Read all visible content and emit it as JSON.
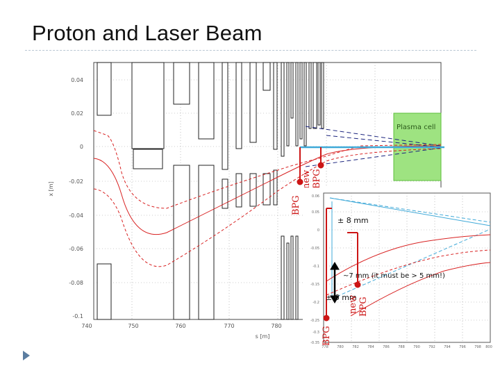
{
  "slide": {
    "title": "Proton and Laser Beam"
  },
  "main_plot": {
    "ylabel": "x [m]",
    "xlabel": "s [m]",
    "yticks": [
      "0.04",
      "0.02",
      "0",
      "-0.02",
      "-0.04",
      "-0.06",
      "-0.08",
      "-0.1"
    ],
    "xticks": [
      "740",
      "750",
      "760",
      "770",
      "780"
    ],
    "plasma_label": "Plasma cell",
    "plasma_color": "#7ed957",
    "laser_color": "#3fa9d8",
    "bpg_color": "#cc1414"
  },
  "inset_plot": {
    "yticks": [
      "0.06",
      "0.05",
      "0",
      "-0.05",
      "-0.1",
      "-0.15",
      "-0.2",
      "-0.25",
      "-0.3",
      "-0.35"
    ],
    "xticks": [
      "778",
      "780",
      "782",
      "784",
      "786",
      "788",
      "790",
      "792",
      "794",
      "796",
      "798",
      "800"
    ]
  },
  "annotations": {
    "bpg_main": "BPG",
    "new_bpg_main_1": "new",
    "new_bpg_main_2": "BPG",
    "plus_minus_8": "± 8 mm",
    "gap_note": "~7 mm (it must be > 5 mm!)",
    "plus_minus_6": "± 6 mm",
    "bpg_inset": "BPG",
    "new_bpg_inset_1": "new",
    "new_bpg_inset_2": "BPG"
  }
}
